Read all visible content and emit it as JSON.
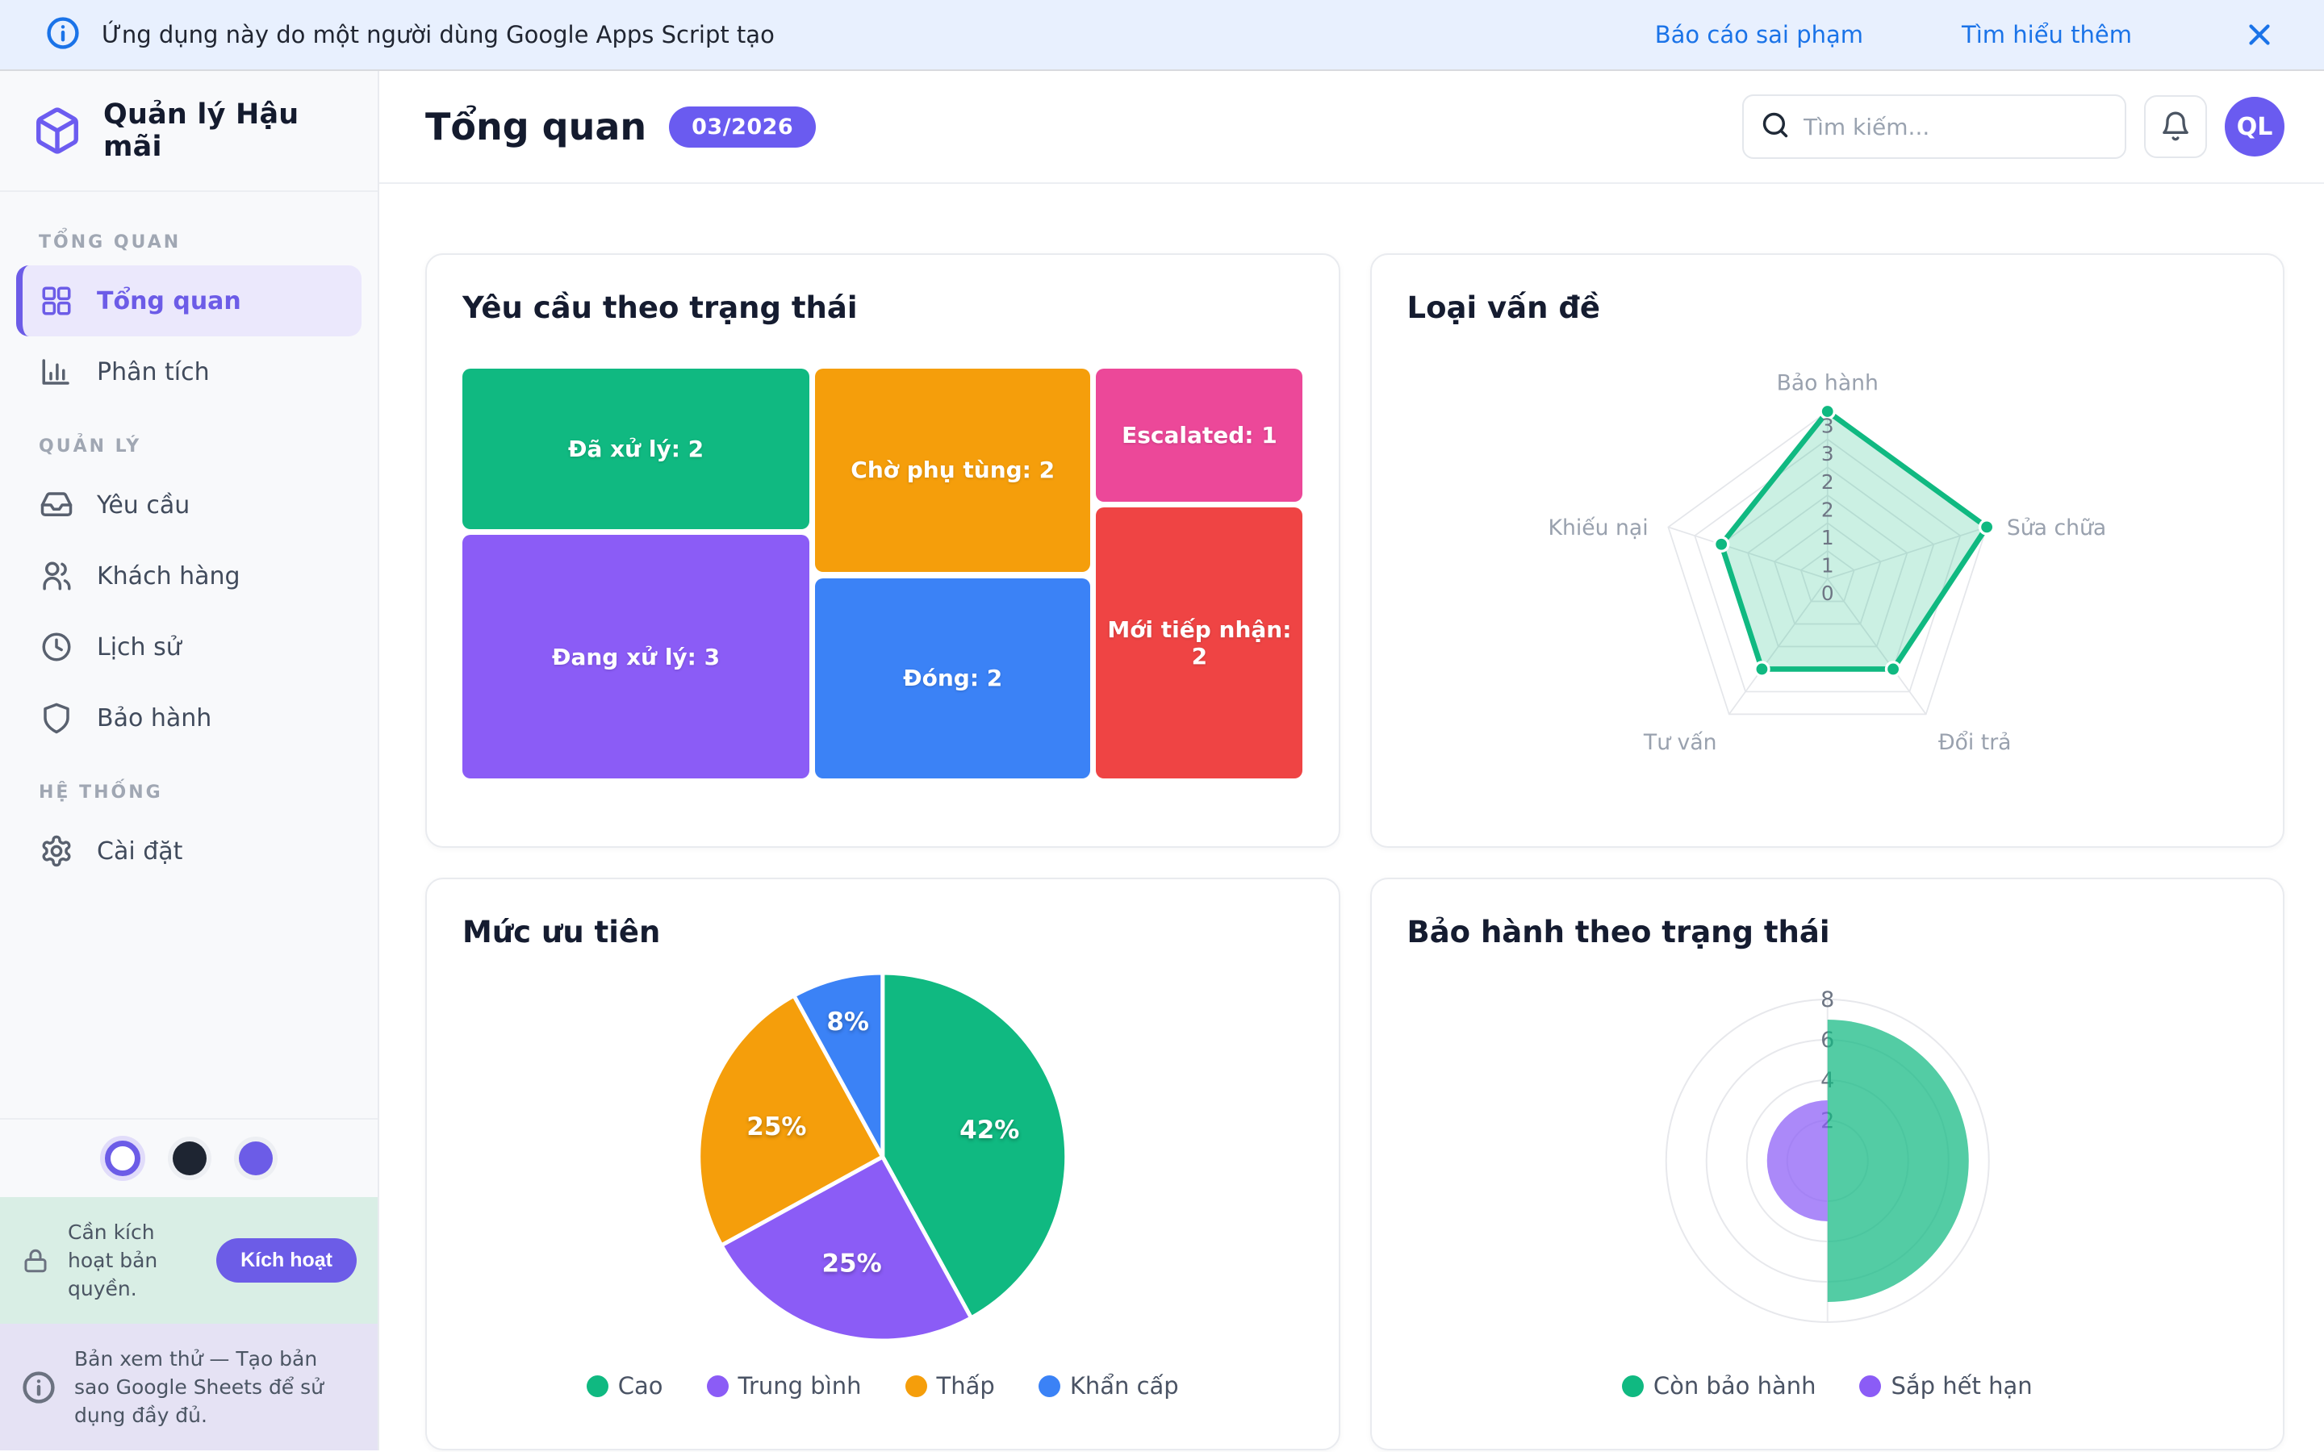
{
  "banner": {
    "text": "Ứng dụng này do một người dùng Google Apps Script tạo",
    "report_link": "Báo cáo sai phạm",
    "learn_link": "Tìm hiểu thêm"
  },
  "sidebar": {
    "app_title": "Quản lý Hậu mãi",
    "sections": [
      {
        "label": "TỔNG QUAN",
        "items": [
          {
            "label": "Tổng quan",
            "icon": "dashboard-icon",
            "active": true
          },
          {
            "label": "Phân tích",
            "icon": "bar-chart-icon",
            "active": false
          }
        ]
      },
      {
        "label": "QUẢN LÝ",
        "items": [
          {
            "label": "Yêu cầu",
            "icon": "inbox-icon",
            "active": false
          },
          {
            "label": "Khách hàng",
            "icon": "users-icon",
            "active": false
          },
          {
            "label": "Lịch sử",
            "icon": "clock-icon",
            "active": false
          },
          {
            "label": "Bảo hành",
            "icon": "shield-icon",
            "active": false
          }
        ]
      },
      {
        "label": "HỆ THỐNG",
        "items": [
          {
            "label": "Cài đặt",
            "icon": "settings-icon",
            "active": false
          }
        ]
      }
    ],
    "theme_dots": [
      "#ffffff",
      "#1e2532",
      "#6c5ce7"
    ],
    "license_notice": {
      "text": "Cần kích hoạt bản quyền.",
      "button": "Kích hoạt"
    },
    "preview_notice": "Bản xem thử — Tạo bản sao Google Sheets để sử dụng đầy đủ."
  },
  "header": {
    "title": "Tổng quan",
    "badge": "03/2026",
    "search_placeholder": "Tìm kiếm...",
    "avatar_initials": "QL"
  },
  "colors": {
    "brand_purple": "#6c5ce7",
    "banner_blue": "#1a73e8",
    "green": "#10b981",
    "violet": "#8b5cf6",
    "amber": "#f59e0b",
    "blue": "#3b82f6",
    "pink": "#ec4899",
    "red": "#ef4444"
  },
  "chart_data": [
    {
      "type": "treemap",
      "title": "Yêu cầu theo trạng thái",
      "tiles": [
        {
          "label": "Đã xử lý: 2",
          "value": 2,
          "color": "#10b981",
          "x": 0,
          "y": 0,
          "w": 41.3,
          "h": 39.2
        },
        {
          "label": "Đang xử lý: 3",
          "value": 3,
          "color": "#8b5cf6",
          "x": 0,
          "y": 40.6,
          "w": 41.3,
          "h": 59.4
        },
        {
          "label": "Chờ phụ tùng: 2",
          "value": 2,
          "color": "#f59e0b",
          "x": 42.0,
          "y": 0,
          "w": 32.7,
          "h": 49.6
        },
        {
          "label": "Đóng: 2",
          "value": 2,
          "color": "#3b82f6",
          "x": 42.0,
          "y": 51.1,
          "w": 32.7,
          "h": 48.9
        },
        {
          "label": "Escalated: 1",
          "value": 1,
          "color": "#ec4899",
          "x": 75.4,
          "y": 0,
          "w": 24.6,
          "h": 32.4
        },
        {
          "label": "Mới tiếp nhận: 2",
          "value": 2,
          "color": "#ef4444",
          "x": 75.4,
          "y": 33.8,
          "w": 24.6,
          "h": 66.2
        }
      ]
    },
    {
      "type": "radar",
      "title": "Loại vấn đề",
      "categories": [
        "Bảo hành",
        "Sửa chữa",
        "Đổi trả",
        "Tư vấn",
        "Khiếu nại"
      ],
      "values": [
        3,
        3,
        2,
        2,
        2
      ],
      "max": 3,
      "rings": 6,
      "tick_labels": [
        "0",
        "1",
        "1",
        "2",
        "2",
        "3",
        "3"
      ],
      "stroke": "#10b981",
      "fill": "rgba(16,185,129,0.22)",
      "grid": "on",
      "legend_position": "none"
    },
    {
      "type": "pie",
      "title": "Mức ưu tiên",
      "labels": [
        "Cao",
        "Trung bình",
        "Thấp",
        "Khẩn cấp"
      ],
      "values": [
        42,
        25,
        25,
        8
      ],
      "display_labels": [
        "42%",
        "25%",
        "25%",
        "8%"
      ],
      "colors": [
        "#10b981",
        "#8b5cf6",
        "#f59e0b",
        "#3b82f6"
      ],
      "start_angle_deg": 0,
      "direction": "clockwise",
      "legend_position": "bottom"
    },
    {
      "type": "polarArea",
      "title": "Bảo hành theo trạng thái",
      "labels": [
        "Còn bảo hành",
        "Sắp hết hạn"
      ],
      "values": [
        7,
        3
      ],
      "colors": [
        "#10b981",
        "#8b5cf6"
      ],
      "fill_opacity": 0.72,
      "max": 8,
      "ticks": [
        2,
        4,
        6,
        8
      ],
      "grid": "on",
      "legend_position": "bottom"
    }
  ]
}
